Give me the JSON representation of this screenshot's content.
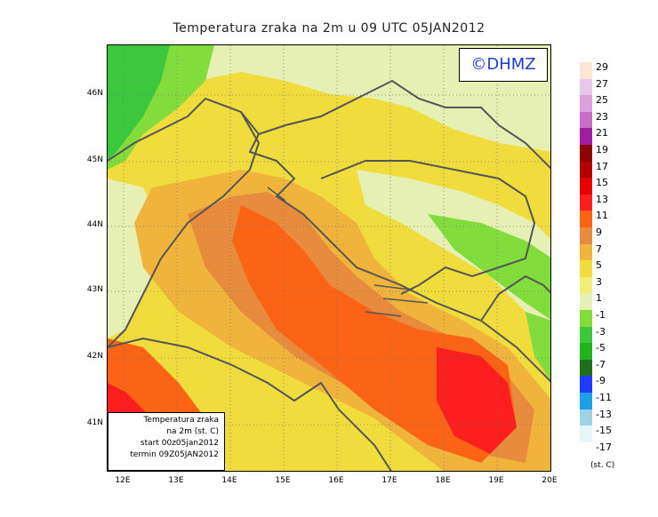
{
  "title": "Temperatura zraka na 2m u 09 UTC 05JAN2012",
  "logo": "©DHMZ",
  "info_box": {
    "line1": "Temperatura zraka",
    "line2": "na 2m (st. C)",
    "line3": "start 00z05jan2012",
    "line4": "termin 09Z05JAN2012"
  },
  "axes": {
    "lat_labels": [
      "46N",
      "45N",
      "44N",
      "43N",
      "42N",
      "41N"
    ],
    "lon_labels": [
      "12E",
      "13E",
      "14E",
      "15E",
      "16E",
      "17E",
      "18E",
      "19E",
      "20E"
    ]
  },
  "legend": {
    "unit": "(st. C)",
    "labels": [
      "29",
      "27",
      "25",
      "23",
      "21",
      "19",
      "17",
      "15",
      "13",
      "11",
      "9",
      "7",
      "5",
      "3",
      "1",
      "-1",
      "-3",
      "-5",
      "-7",
      "-9",
      "-11",
      "-13",
      "-15",
      "-17"
    ],
    "colors": [
      "#fbe7d6",
      "#e7c8e7",
      "#dca0dc",
      "#c86ec8",
      "#a01ea0",
      "#8c0000",
      "#b20000",
      "#e60000",
      "#ff1e1e",
      "#fa6414",
      "#e68c3c",
      "#f0b43c",
      "#f0dc3c",
      "#f0f078",
      "#e6f0b4",
      "#82dc3c",
      "#3cc83c",
      "#1eb41e",
      "#1e6e1e",
      "#1e3cff",
      "#1ea0e6",
      "#a0d2e6",
      "#e6f5f5",
      "#ffffff"
    ]
  }
}
